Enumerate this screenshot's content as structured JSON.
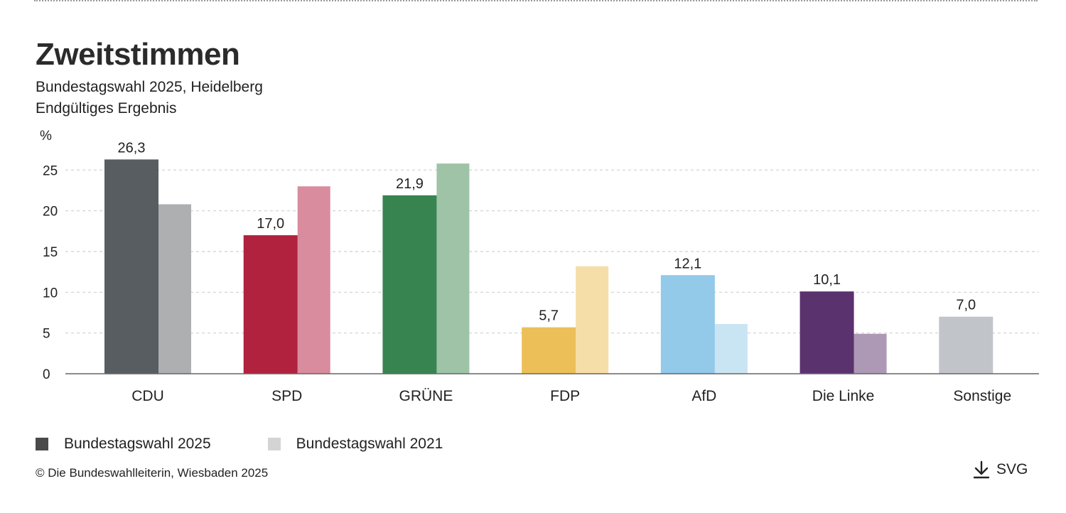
{
  "header": {
    "title": "Zweitstimmen",
    "subtitle_line1": "Bundestagswahl 2025, Heidelberg",
    "subtitle_line2": "Endgültiges Ergebnis"
  },
  "legend": {
    "item_2025": "Bundestagswahl 2025",
    "item_2021": "Bundestagswahl 2021",
    "color_2025": "#4a4a4a",
    "color_2021": "#d4d4d4"
  },
  "footer": {
    "copyright": "© Die Bundeswahlleiterin, Wiesbaden 2025",
    "download_label": "SVG",
    "download_icon": "download-icon"
  },
  "chart_data": {
    "type": "bar",
    "ylabel": "%",
    "ylim": [
      0,
      30
    ],
    "yticks": [
      0,
      5,
      10,
      15,
      20,
      25
    ],
    "grid": true,
    "categories": [
      "CDU",
      "SPD",
      "GRÜNE",
      "FDP",
      "AfD",
      "Die Linke",
      "Sonstige"
    ],
    "series": [
      {
        "name": "Bundestagswahl 2025",
        "values": [
          26.3,
          17.0,
          21.9,
          5.7,
          12.1,
          10.1,
          7.0
        ],
        "labels": [
          "26,3",
          "17,0",
          "21,9",
          "5,7",
          "12,1",
          "10,1",
          "7,0"
        ],
        "colors": [
          "#575d61",
          "#b0223d",
          "#388450",
          "#edbf58",
          "#93c9e9",
          "#5a326d",
          "#c1c5c9"
        ]
      },
      {
        "name": "Bundestagswahl 2021",
        "values": [
          20.8,
          23.0,
          25.8,
          13.2,
          6.1,
          4.9,
          null
        ],
        "colors": [
          "#adafb1",
          "#d88c9e",
          "#9ec3a6",
          "#f5dea8",
          "#c9e4f3",
          "#ad99b6",
          "#e3e5e7"
        ]
      }
    ]
  }
}
